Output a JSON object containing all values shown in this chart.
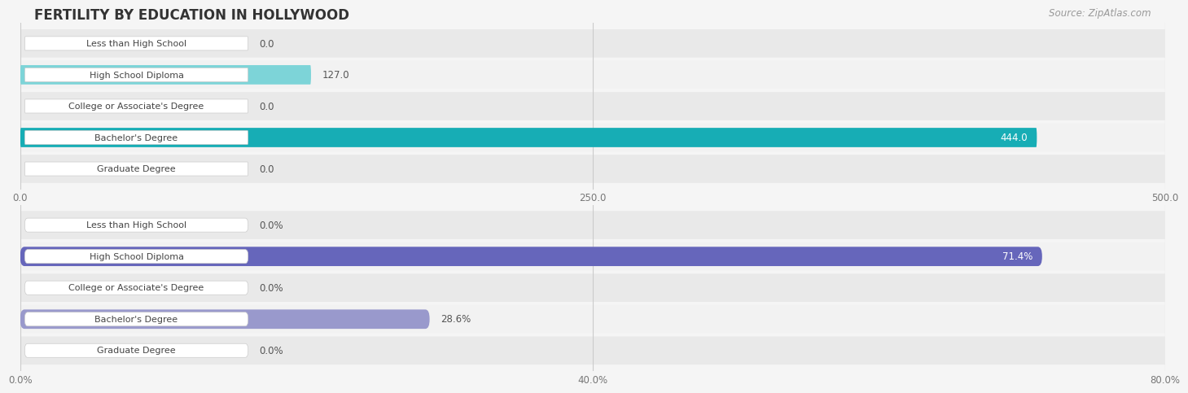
{
  "title": "FERTILITY BY EDUCATION IN HOLLYWOOD",
  "source": "Source: ZipAtlas.com",
  "top_chart": {
    "categories": [
      "Less than High School",
      "High School Diploma",
      "College or Associate's Degree",
      "Bachelor's Degree",
      "Graduate Degree"
    ],
    "values": [
      0.0,
      127.0,
      0.0,
      444.0,
      0.0
    ],
    "xlim": [
      0,
      500
    ],
    "xticks": [
      0.0,
      250.0,
      500.0
    ],
    "is_percent": false,
    "bar_color_low": "#7dd4d8",
    "bar_color_high": "#17adb5",
    "label_inside_color": "#ffffff",
    "label_outside_color": "#555555"
  },
  "bottom_chart": {
    "categories": [
      "Less than High School",
      "High School Diploma",
      "College or Associate's Degree",
      "Bachelor's Degree",
      "Graduate Degree"
    ],
    "values": [
      0.0,
      71.4,
      0.0,
      28.6,
      0.0
    ],
    "xlim": [
      0,
      80
    ],
    "xticks": [
      0.0,
      40.0,
      80.0
    ],
    "is_percent": true,
    "bar_color_low": "#9999cc",
    "bar_color_high": "#6666bb",
    "label_inside_color": "#ffffff",
    "label_outside_color": "#555555"
  },
  "background_color": "#f5f5f5",
  "row_bg_even": "#e9e9e9",
  "row_bg_odd": "#f2f2f2",
  "label_box_color": "#ffffff",
  "label_box_edge": "#cccccc",
  "grid_color": "#cccccc",
  "title_fontsize": 12,
  "source_fontsize": 8.5,
  "bar_label_fontsize": 8.5,
  "category_fontsize": 8.0,
  "tick_fontsize": 8.5,
  "category_text_color": "#444444",
  "tick_color": "#777777"
}
